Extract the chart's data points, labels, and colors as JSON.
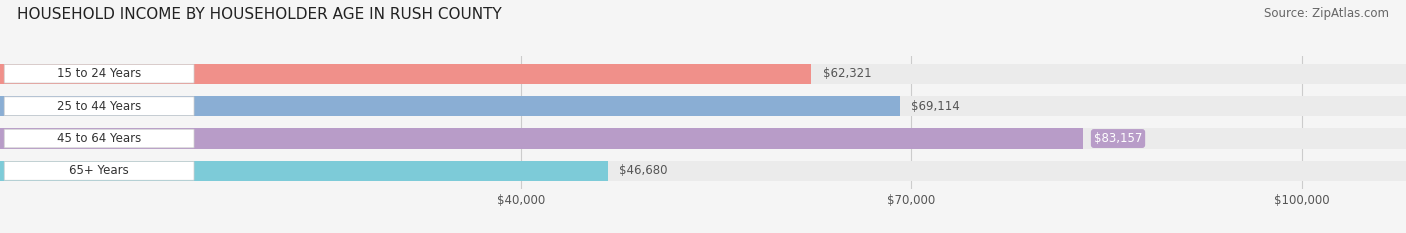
{
  "title": "HOUSEHOLD INCOME BY HOUSEHOLDER AGE IN RUSH COUNTY",
  "source": "Source: ZipAtlas.com",
  "categories": [
    "15 to 24 Years",
    "25 to 44 Years",
    "45 to 64 Years",
    "65+ Years"
  ],
  "values": [
    62321,
    69114,
    83157,
    46680
  ],
  "bar_colors": [
    "#f0908a",
    "#8aaed4",
    "#b89cc8",
    "#7dcbd8"
  ],
  "label_colors": [
    "#555555",
    "#555555",
    "#ffffff",
    "#555555"
  ],
  "bar_height": 0.62,
  "xmax": 108000,
  "xticks": [
    40000,
    70000,
    100000
  ],
  "xtick_labels": [
    "$40,000",
    "$70,000",
    "$100,000"
  ],
  "background_color": "#f5f5f5",
  "bar_bg_color": "#ebebeb",
  "title_fontsize": 11,
  "source_fontsize": 8.5,
  "label_fontsize": 8.5,
  "tick_fontsize": 8.5,
  "category_fontsize": 8.5,
  "pill_bg_color": "#ffffff",
  "grid_color": "#cccccc"
}
